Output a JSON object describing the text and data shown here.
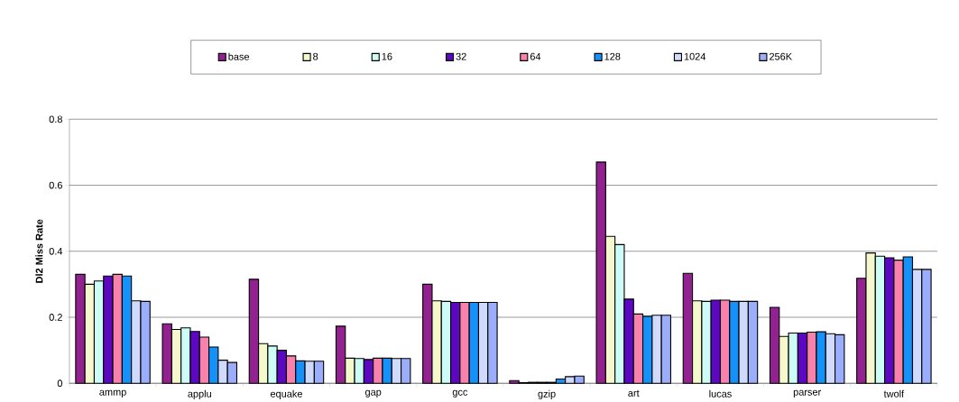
{
  "chart_data": {
    "type": "bar",
    "ylabel": "Dl2 Miss Rate",
    "categories": [
      "ammp",
      "applu",
      "equake",
      "gap",
      "gcc",
      "gzip",
      "art",
      "lucas",
      "parser",
      "twolf"
    ],
    "series": [
      {
        "name": "base",
        "color": "#922290",
        "values": [
          0.33,
          0.18,
          0.315,
          0.173,
          0.3,
          0.008,
          0.67,
          0.333,
          0.23,
          0.318
        ]
      },
      {
        "name": "8",
        "color": "#f5f8cc",
        "values": [
          0.3,
          0.163,
          0.12,
          0.076,
          0.25,
          0.002,
          0.445,
          0.25,
          0.142,
          0.395
        ]
      },
      {
        "name": "16",
        "color": "#ccfcf5",
        "values": [
          0.31,
          0.168,
          0.113,
          0.075,
          0.248,
          0.003,
          0.42,
          0.248,
          0.152,
          0.385
        ]
      },
      {
        "name": "32",
        "color": "#5c08c0",
        "values": [
          0.325,
          0.157,
          0.1,
          0.072,
          0.245,
          0.003,
          0.255,
          0.252,
          0.152,
          0.38
        ]
      },
      {
        "name": "64",
        "color": "#f882ac",
        "values": [
          0.33,
          0.14,
          0.083,
          0.076,
          0.245,
          0.003,
          0.21,
          0.252,
          0.155,
          0.373
        ]
      },
      {
        "name": "128",
        "color": "#1492fa",
        "values": [
          0.325,
          0.11,
          0.068,
          0.076,
          0.245,
          0.013,
          0.203,
          0.248,
          0.156,
          0.383
        ]
      },
      {
        "name": "1024",
        "color": "#cfdafc",
        "values": [
          0.25,
          0.07,
          0.067,
          0.075,
          0.245,
          0.02,
          0.206,
          0.248,
          0.15,
          0.345
        ]
      },
      {
        "name": "256K",
        "color": "#9aaefc",
        "values": [
          0.248,
          0.063,
          0.067,
          0.075,
          0.245,
          0.022,
          0.206,
          0.248,
          0.147,
          0.345
        ]
      }
    ],
    "ylim": [
      0,
      0.8
    ],
    "yticks": [
      0,
      0.2,
      0.4,
      0.6,
      0.8
    ],
    "grid": "y",
    "legend": "top"
  }
}
